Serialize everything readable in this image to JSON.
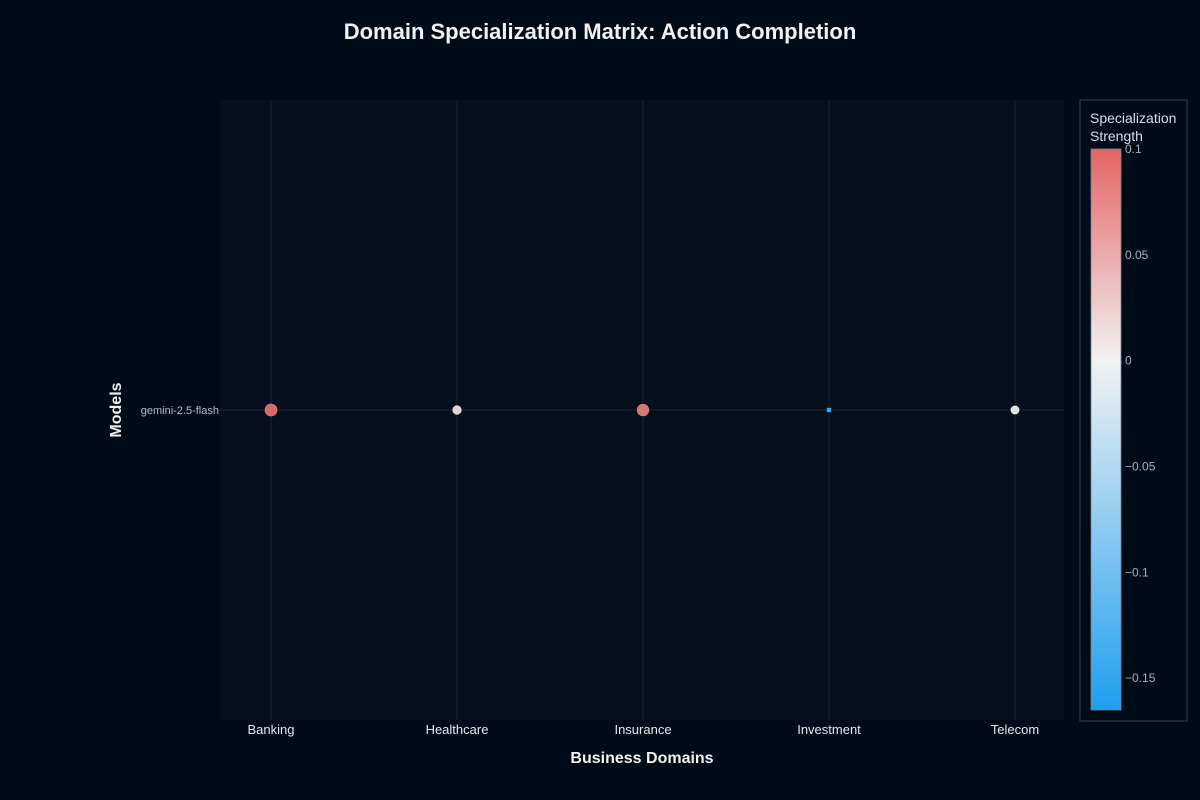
{
  "chart_data": {
    "type": "scatter",
    "title": "Domain Specialization Matrix: Action Completion",
    "xlabel": "Business Domains",
    "ylabel": "Models",
    "categories": [
      "Banking",
      "Healthcare",
      "Insurance",
      "Investment",
      "Telecom"
    ],
    "models": [
      "gemini-2.5-flash"
    ],
    "series": [
      {
        "name": "gemini-2.5-flash",
        "values": [
          0.09,
          0.01,
          0.08,
          -0.15,
          0.0
        ]
      }
    ],
    "colorbar": {
      "title": [
        "Specialization",
        "Strength"
      ],
      "range": [
        -0.165,
        0.1
      ],
      "ticks": [
        0.1,
        0.05,
        0,
        -0.05,
        -0.1,
        -0.15
      ],
      "tick_labels": [
        "0.1",
        "0.05",
        "0",
        "−0.05",
        "−0.1",
        "−0.15"
      ],
      "colorscale": [
        "#1f9ff0",
        "#f2f2f2",
        "#e46464"
      ]
    },
    "grid": true,
    "background": "#000b18",
    "plot_background": "#070e1c"
  }
}
